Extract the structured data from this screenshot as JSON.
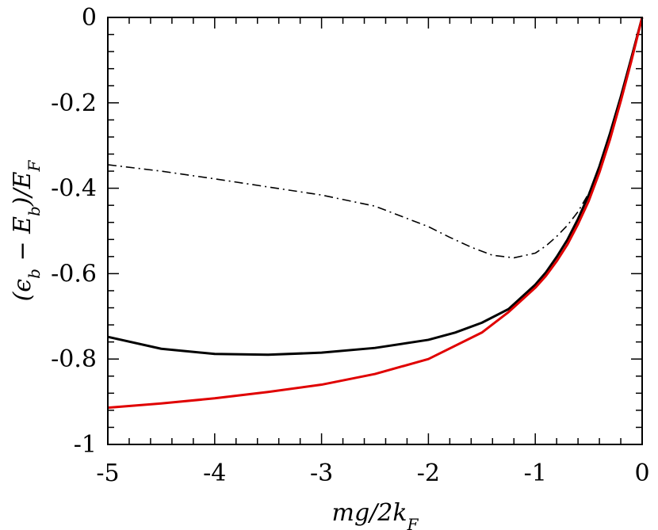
{
  "chart_data": {
    "type": "line",
    "xlabel": "mg/2k_F",
    "ylabel": "(ϵ_b − E_b)/E_F",
    "xlim": [
      -5,
      0
    ],
    "ylim": [
      -1,
      0
    ],
    "grid": false,
    "x_ticks": [
      "-5",
      "-4",
      "-3",
      "-2",
      "-1",
      "0"
    ],
    "y_ticks": [
      "0",
      "-0.2",
      "-0.4",
      "-0.6",
      "-0.8",
      "-1"
    ],
    "x_tick_values": [
      -5,
      -4,
      -3,
      -2,
      -1,
      0
    ],
    "y_tick_values": [
      0,
      -0.2,
      -0.4,
      -0.6,
      -0.8,
      -1
    ],
    "series": [
      {
        "style": "dash-dot",
        "color": "#000000",
        "x": [
          -5.0,
          -4.5,
          -4.0,
          -3.5,
          -3.0,
          -2.5,
          -2.0,
          -1.8,
          -1.6,
          -1.4,
          -1.2,
          -1.0,
          -0.9,
          -0.8,
          -0.7,
          -0.6,
          -0.5,
          -0.45
        ],
        "y": [
          -0.345,
          -0.36,
          -0.378,
          -0.397,
          -0.416,
          -0.442,
          -0.49,
          -0.515,
          -0.538,
          -0.557,
          -0.563,
          -0.552,
          -0.535,
          -0.513,
          -0.487,
          -0.455,
          -0.412,
          -0.385
        ]
      },
      {
        "style": "solid",
        "color": "#000000",
        "x": [
          -5.0,
          -4.5,
          -4.0,
          -3.5,
          -3.0,
          -2.5,
          -2.0,
          -1.75,
          -1.5,
          -1.25,
          -1.0,
          -0.9,
          -0.8,
          -0.7,
          -0.6,
          -0.5,
          -0.4,
          -0.3,
          -0.2,
          -0.1,
          0.0
        ],
        "y": [
          -0.748,
          -0.776,
          -0.788,
          -0.79,
          -0.785,
          -0.774,
          -0.755,
          -0.738,
          -0.715,
          -0.683,
          -0.626,
          -0.597,
          -0.561,
          -0.521,
          -0.472,
          -0.416,
          -0.349,
          -0.271,
          -0.186,
          -0.094,
          0.0
        ]
      },
      {
        "style": "solid",
        "color": "#e00000",
        "x": [
          -5.0,
          -4.5,
          -4.0,
          -3.5,
          -3.0,
          -2.5,
          -2.0,
          -1.5,
          -1.25,
          -1.0,
          -0.9,
          -0.8,
          -0.7,
          -0.6,
          -0.5,
          -0.4,
          -0.3,
          -0.2,
          -0.1,
          0.0
        ],
        "y": [
          -0.914,
          -0.904,
          -0.892,
          -0.877,
          -0.86,
          -0.835,
          -0.8,
          -0.738,
          -0.69,
          -0.633,
          -0.605,
          -0.571,
          -0.532,
          -0.484,
          -0.43,
          -0.363,
          -0.285,
          -0.196,
          -0.101,
          0.0
        ]
      }
    ]
  }
}
